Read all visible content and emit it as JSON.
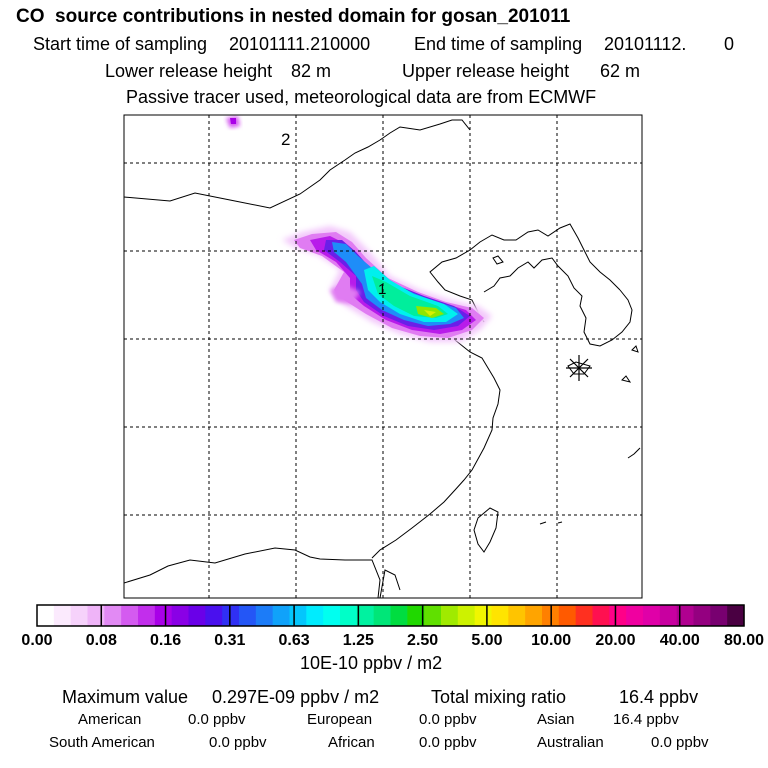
{
  "header": {
    "title": "CO  source contributions in nested domain for gosan_201011",
    "start_label": "Start time of sampling",
    "start_value": "20101111.210000",
    "end_label": "End time of sampling",
    "end_value": "20101112.",
    "end_extra": "0",
    "lower_label": "Lower release height",
    "lower_value": "82 m",
    "upper_label": "Upper release height",
    "upper_value": "62 m",
    "note": "Passive tracer used, meteorological data are from ECMWF"
  },
  "map": {
    "labels": {
      "region_1": "1",
      "region_2": "2"
    },
    "receptor_marker": "asterisk-icon"
  },
  "colorbar": {
    "tick_labels": [
      "0.00",
      "0.08",
      "0.16",
      "0.31",
      "0.63",
      "1.25",
      "2.50",
      "5.00",
      "10.00",
      "20.00",
      "40.00",
      "80.00"
    ],
    "units": "10E-10 ppbv / m2",
    "colors": [
      "#ffffff",
      "#fbeafd",
      "#f6d2fb",
      "#efb4f8",
      "#e28af4",
      "#d45bf0",
      "#c22eec",
      "#a900e8",
      "#8a00e6",
      "#6a00e8",
      "#4a10ee",
      "#3030f4",
      "#2456f6",
      "#1c7cf8",
      "#10a2fa",
      "#04c6fc",
      "#00ecfe",
      "#00fff0",
      "#00ffc8",
      "#00f2a0",
      "#00e678",
      "#00dd40",
      "#20d800",
      "#60e000",
      "#a0ea00",
      "#cdf200",
      "#f0f600",
      "#ffe400",
      "#ffc400",
      "#ffa400",
      "#ff8000",
      "#ff5a00",
      "#ff3020",
      "#ff1050",
      "#ff0088",
      "#f000a0",
      "#e000a8",
      "#c800a0",
      "#b00090",
      "#940080",
      "#780070",
      "#4a0042"
    ]
  },
  "stats": {
    "max_label": "Maximum value",
    "max_value": "0.297E-09 ppbv / m2",
    "total_label": "Total mixing ratio",
    "total_value": "16.4 ppbv",
    "regions": [
      {
        "name": "American",
        "value": "0.0 ppbv"
      },
      {
        "name": "European",
        "value": "0.0 ppbv"
      },
      {
        "name": "Asian",
        "value": "16.4 ppbv"
      },
      {
        "name": "South American",
        "value": "0.0 ppbv"
      },
      {
        "name": "African",
        "value": "0.0 ppbv"
      },
      {
        "name": "Australian",
        "value": "0.0 ppbv"
      }
    ]
  }
}
